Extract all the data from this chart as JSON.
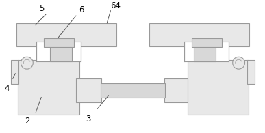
{
  "bg_color": "#ffffff",
  "lc": "#999999",
  "fc": "#e8e8e8",
  "fc2": "#d8d8d8",
  "lw": 0.8,
  "figsize": [
    3.87,
    1.95
  ],
  "dpi": 100,
  "annot_color": "#555555",
  "label_fontsize": 8.5
}
